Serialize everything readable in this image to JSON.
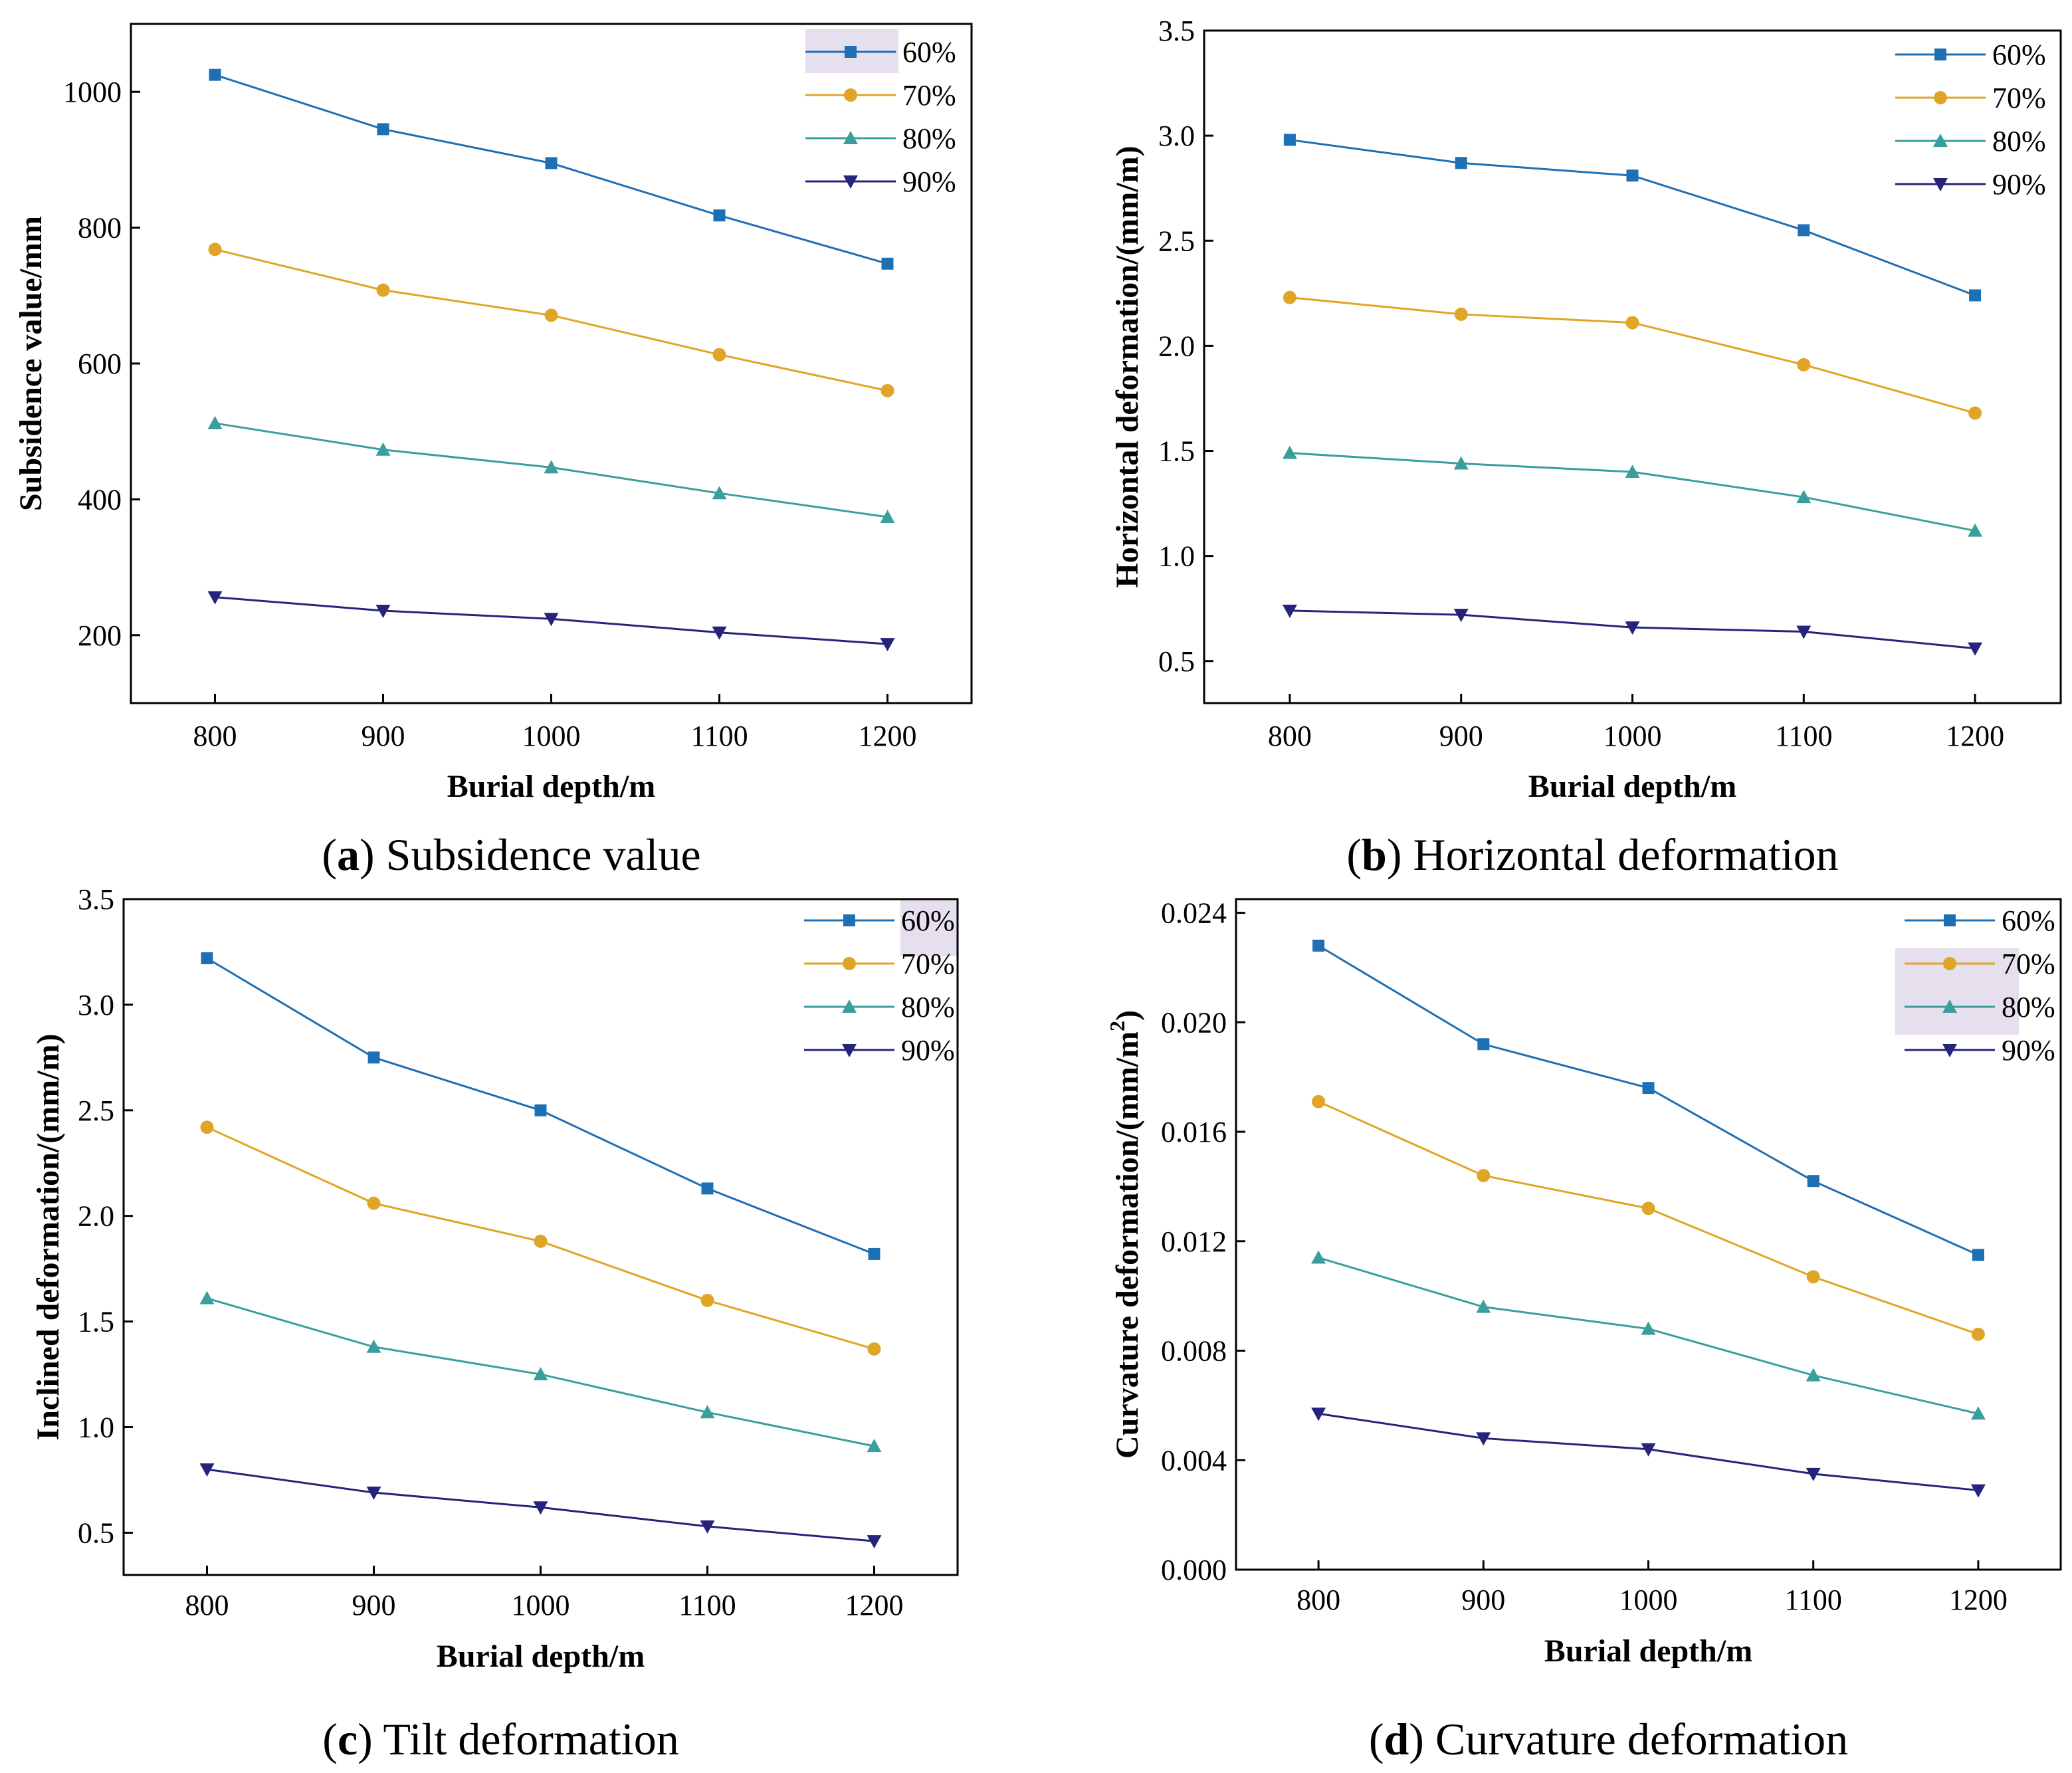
{
  "colors": {
    "s60": "#1f6fb4",
    "s70": "#e0a526",
    "s80": "#3a9f9c",
    "s90": "#25237a",
    "legend_highlight": "#e5dfee"
  },
  "chart_data": [
    {
      "id": "a",
      "type": "line",
      "caption_letter": "a",
      "caption_text": "Subsidence value",
      "xlabel": "Burial depth/m",
      "ylabel": "Subsidence value/mm",
      "x": [
        800,
        900,
        1000,
        1100,
        1200
      ],
      "x_ticks": [
        "800",
        "900",
        "1000",
        "1100",
        "1200"
      ],
      "y_ticks": [
        "200",
        "400",
        "600",
        "800",
        "1000"
      ],
      "xlim": [
        750,
        1250
      ],
      "ylim": [
        100,
        1100
      ],
      "legend_position": "top-right",
      "series": [
        {
          "name": "60%",
          "key": "s60",
          "marker": "square",
          "values": [
            1025,
            945,
            895,
            818,
            747
          ]
        },
        {
          "name": "70%",
          "key": "s70",
          "marker": "circle",
          "values": [
            768,
            708,
            671,
            613,
            560
          ]
        },
        {
          "name": "80%",
          "key": "s80",
          "marker": "triangle-up",
          "values": [
            512,
            473,
            447,
            409,
            374
          ]
        },
        {
          "name": "90%",
          "key": "s90",
          "marker": "triangle-down",
          "values": [
            256,
            236,
            224,
            204,
            187
          ]
        }
      ]
    },
    {
      "id": "b",
      "type": "line",
      "caption_letter": "b",
      "caption_text": "Horizontal deformation",
      "xlabel": "Burial depth/m",
      "ylabel": "Horizontal deformation/(mm/m)",
      "x": [
        800,
        900,
        1000,
        1100,
        1200
      ],
      "x_ticks": [
        "800",
        "900",
        "1000",
        "1100",
        "1200"
      ],
      "y_ticks": [
        "0.5",
        "1.0",
        "1.5",
        "2.0",
        "2.5",
        "3.0",
        "3.5"
      ],
      "xlim": [
        750,
        1250
      ],
      "ylim": [
        0.3,
        3.5
      ],
      "legend_position": "top-right",
      "series": [
        {
          "name": "60%",
          "key": "s60",
          "marker": "square",
          "values": [
            2.98,
            2.87,
            2.81,
            2.55,
            2.24
          ]
        },
        {
          "name": "70%",
          "key": "s70",
          "marker": "circle",
          "values": [
            2.23,
            2.15,
            2.11,
            1.91,
            1.68
          ]
        },
        {
          "name": "80%",
          "key": "s80",
          "marker": "triangle-up",
          "values": [
            1.49,
            1.44,
            1.4,
            1.28,
            1.12
          ]
        },
        {
          "name": "90%",
          "key": "s90",
          "marker": "triangle-down",
          "values": [
            0.74,
            0.72,
            0.66,
            0.64,
            0.56
          ]
        }
      ]
    },
    {
      "id": "c",
      "type": "line",
      "caption_letter": "c",
      "caption_text": "Tilt deformation",
      "xlabel": "Burial depth/m",
      "ylabel": "Inclined deformation/(mm/m)",
      "x": [
        800,
        900,
        1000,
        1100,
        1200
      ],
      "x_ticks": [
        "800",
        "900",
        "1000",
        "1100",
        "1200"
      ],
      "y_ticks": [
        "0.5",
        "1.0",
        "1.5",
        "2.0",
        "2.5",
        "3.0",
        "3.5"
      ],
      "xlim": [
        750,
        1250
      ],
      "ylim": [
        0.3,
        3.5
      ],
      "legend_position": "top-right",
      "series": [
        {
          "name": "60%",
          "key": "s60",
          "marker": "square",
          "values": [
            3.22,
            2.75,
            2.5,
            2.13,
            1.82
          ]
        },
        {
          "name": "70%",
          "key": "s70",
          "marker": "circle",
          "values": [
            2.42,
            2.06,
            1.88,
            1.6,
            1.37
          ]
        },
        {
          "name": "80%",
          "key": "s80",
          "marker": "triangle-up",
          "values": [
            1.61,
            1.38,
            1.25,
            1.07,
            0.91
          ]
        },
        {
          "name": "90%",
          "key": "s90",
          "marker": "triangle-down",
          "values": [
            0.8,
            0.69,
            0.62,
            0.53,
            0.46
          ]
        }
      ]
    },
    {
      "id": "d",
      "type": "line",
      "caption_letter": "d",
      "caption_text": "Curvature deformation",
      "xlabel": "Burial depth/m",
      "ylabel": "Curvature deformation/(mm/m",
      "ylabel_sup": "2",
      "ylabel_end": ")",
      "x": [
        800,
        900,
        1000,
        1100,
        1200
      ],
      "x_ticks": [
        "800",
        "900",
        "1000",
        "1100",
        "1200"
      ],
      "y_ticks": [
        "0.000",
        "0.004",
        "0.008",
        "0.012",
        "0.016",
        "0.020",
        "0.024"
      ],
      "xlim": [
        750,
        1250
      ],
      "ylim": [
        0.0,
        0.0245
      ],
      "legend_position": "top-right",
      "series": [
        {
          "name": "60%",
          "key": "s60",
          "marker": "square",
          "values": [
            0.0228,
            0.0192,
            0.0176,
            0.0142,
            0.0115
          ]
        },
        {
          "name": "70%",
          "key": "s70",
          "marker": "circle",
          "values": [
            0.0171,
            0.0144,
            0.0132,
            0.0107,
            0.0086
          ]
        },
        {
          "name": "80%",
          "key": "s80",
          "marker": "triangle-up",
          "values": [
            0.0114,
            0.0096,
            0.0088,
            0.0071,
            0.0057
          ]
        },
        {
          "name": "90%",
          "key": "s90",
          "marker": "triangle-down",
          "values": [
            0.0057,
            0.0048,
            0.0044,
            0.0035,
            0.0029
          ]
        }
      ]
    }
  ]
}
